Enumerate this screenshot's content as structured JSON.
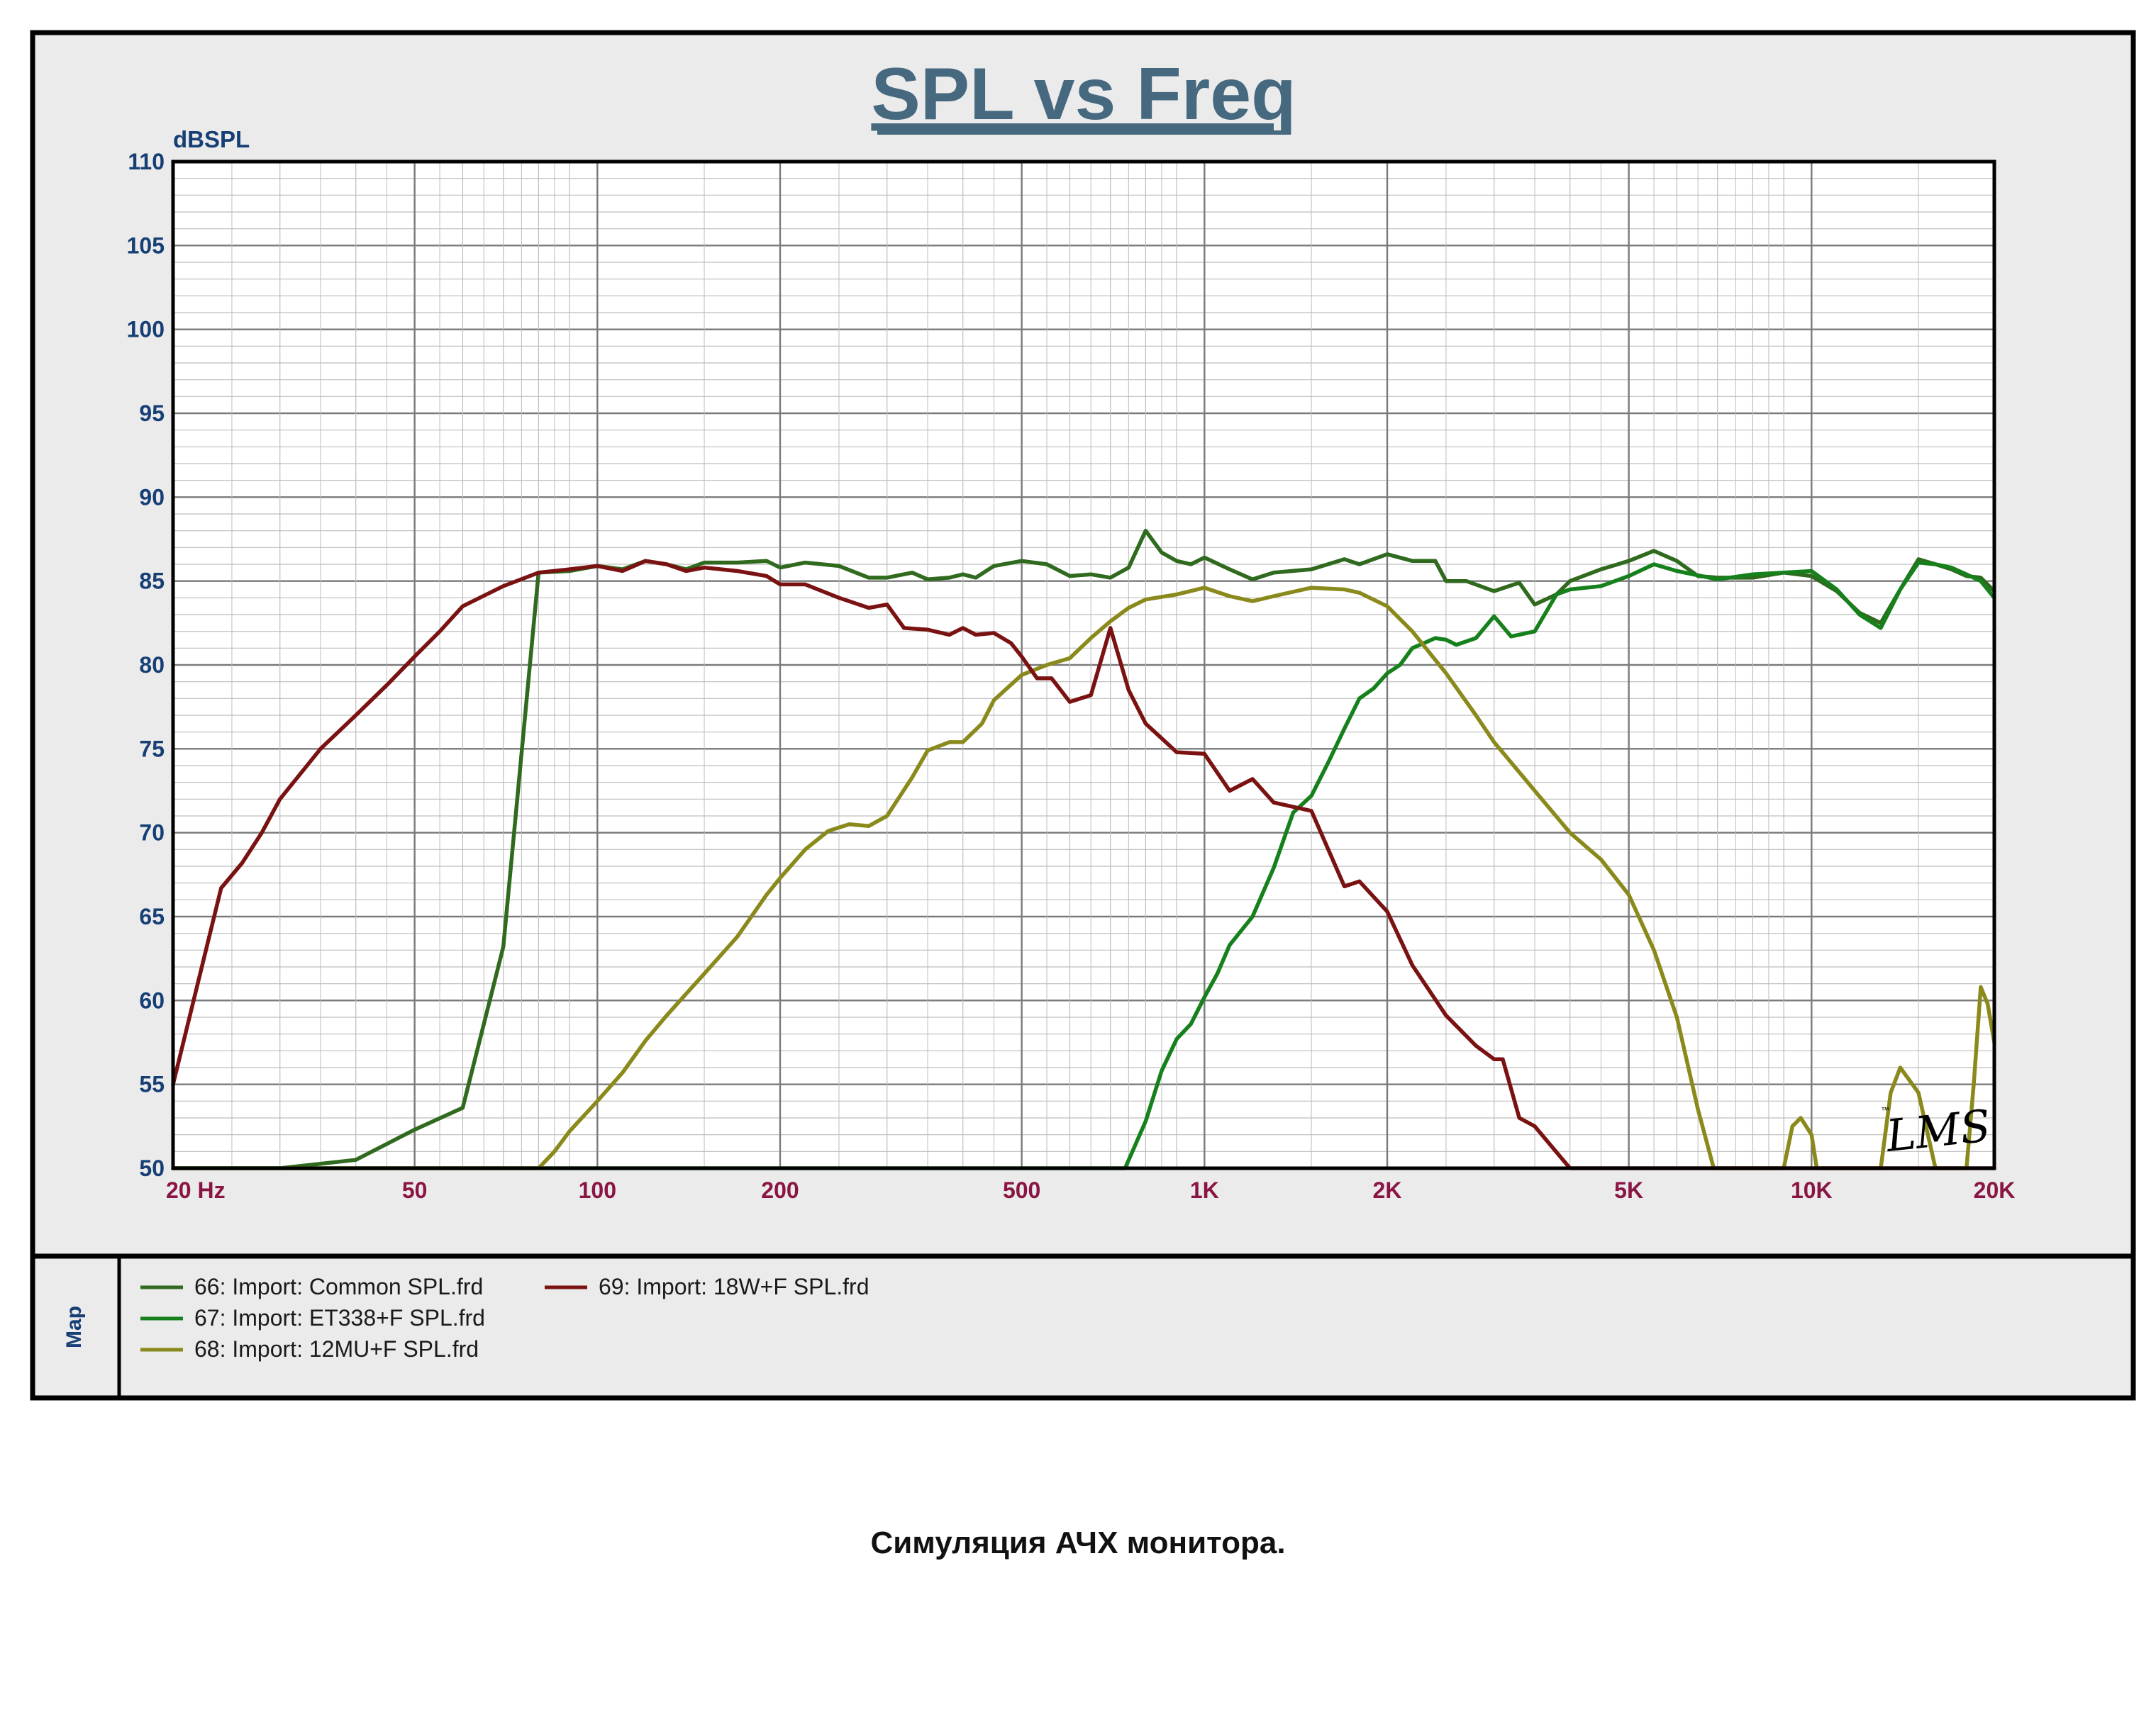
{
  "caption": "Симуляция АЧХ  монитора.",
  "logo_text": "LMS",
  "legend_side_label": "Map",
  "colors": {
    "panel_bg": "#ebebeb",
    "plot_bg": "#ffffff",
    "border": "#000000",
    "grid_major": "#7a7a7a",
    "grid_minor": "#bdbdbd",
    "title": "#46697f",
    "y_tick": "#173f75",
    "x_tick": "#8a1444"
  },
  "chart_data": {
    "type": "line",
    "title": "SPL vs Freq",
    "ylabel": "dBSPL",
    "xlabel": "",
    "x_scale": "log",
    "xlim": [
      20,
      20000
    ],
    "ylim": [
      50,
      110
    ],
    "grid": true,
    "legend_position": "bottom",
    "y_ticks": [
      {
        "value": 110,
        "label": "110"
      },
      {
        "value": 105,
        "label": "105"
      },
      {
        "value": 100,
        "label": "100"
      },
      {
        "value": 95,
        "label": "95"
      },
      {
        "value": 90,
        "label": "90"
      },
      {
        "value": 85,
        "label": "85"
      },
      {
        "value": 80,
        "label": "80"
      },
      {
        "value": 75,
        "label": "75"
      },
      {
        "value": 70,
        "label": "70"
      },
      {
        "value": 65,
        "label": "65"
      },
      {
        "value": 60,
        "label": "60"
      },
      {
        "value": 55,
        "label": "55"
      },
      {
        "value": 50,
        "label": "50"
      }
    ],
    "x_ticks": [
      {
        "value": 20,
        "label": "20  Hz"
      },
      {
        "value": 50,
        "label": "50"
      },
      {
        "value": 100,
        "label": "100"
      },
      {
        "value": 200,
        "label": "200"
      },
      {
        "value": 500,
        "label": "500"
      },
      {
        "value": 1000,
        "label": "1K"
      },
      {
        "value": 2000,
        "label": "2K"
      },
      {
        "value": 5000,
        "label": "5K"
      },
      {
        "value": 10000,
        "label": "10K"
      },
      {
        "value": 20000,
        "label": "20K"
      }
    ],
    "series": [
      {
        "name": "66: Import: Common SPL.frd",
        "color": "#2f6a1e",
        "x": [
          20,
          30,
          40,
          50,
          60,
          70,
          80,
          90,
          100,
          110,
          120,
          130,
          140,
          150,
          170,
          190,
          200,
          220,
          250,
          280,
          300,
          330,
          350,
          380,
          400,
          420,
          450,
          500,
          550,
          600,
          650,
          700,
          750,
          800,
          850,
          900,
          950,
          1000,
          1100,
          1200,
          1300,
          1500,
          1700,
          1800,
          2000,
          2200,
          2400,
          2500,
          2700,
          3000,
          3300,
          3500,
          3800,
          4000,
          4500,
          5000,
          5500,
          6000,
          6500,
          7000,
          8000,
          9000,
          10000,
          11000,
          12000,
          13000,
          14000,
          15000,
          16000,
          17000,
          18000,
          19000,
          20000
        ],
        "y": [
          50.0,
          50.0,
          50.5,
          52.3,
          53.6,
          63.2,
          85.5,
          85.6,
          85.9,
          85.7,
          86.2,
          86.0,
          85.7,
          86.1,
          86.1,
          86.2,
          85.8,
          86.1,
          85.9,
          85.2,
          85.2,
          85.5,
          85.1,
          85.2,
          85.4,
          85.2,
          85.9,
          86.2,
          86.0,
          85.3,
          85.4,
          85.2,
          85.8,
          88.0,
          86.7,
          86.2,
          86.0,
          86.4,
          85.7,
          85.1,
          85.5,
          85.7,
          86.3,
          86.0,
          86.6,
          86.2,
          86.2,
          85.0,
          85.0,
          84.4,
          84.9,
          83.6,
          84.2,
          85.0,
          85.7,
          86.2,
          86.8,
          86.2,
          85.3,
          85.2,
          85.2,
          85.5,
          85.3,
          84.4,
          83.1,
          82.5,
          84.5,
          86.3,
          86.0,
          85.7,
          85.3,
          85.2,
          84.4
        ]
      },
      {
        "name": "67: Import: ET338+F SPL.frd",
        "color": "#16811c",
        "x": [
          20,
          100,
          300,
          600,
          740,
          800,
          850,
          900,
          950,
          1000,
          1050,
          1100,
          1200,
          1300,
          1400,
          1500,
          1600,
          1700,
          1800,
          1900,
          2000,
          2100,
          2200,
          2300,
          2400,
          2500,
          2600,
          2800,
          3000,
          3200,
          3500,
          3800,
          4000,
          4500,
          5000,
          5500,
          6000,
          7000,
          8000,
          9000,
          10000,
          11000,
          12000,
          13000,
          14000,
          15000,
          16000,
          17000,
          18000,
          19000,
          20000
        ],
        "y": [
          50.0,
          50.0,
          50.0,
          50.0,
          50.0,
          52.8,
          55.8,
          57.7,
          58.6,
          60.2,
          61.6,
          63.3,
          65.0,
          67.9,
          71.2,
          72.2,
          74.2,
          76.2,
          78.0,
          78.6,
          79.5,
          80.0,
          81.0,
          81.3,
          81.6,
          81.5,
          81.2,
          81.6,
          82.9,
          81.7,
          82.0,
          84.2,
          84.5,
          84.7,
          85.3,
          86.0,
          85.6,
          85.1,
          85.4,
          85.5,
          85.6,
          84.5,
          83.0,
          82.2,
          84.5,
          86.1,
          86.0,
          85.8,
          85.4,
          85.0,
          84.0
        ]
      },
      {
        "name": "68: Import: 12MU+F SPL.frd",
        "color": "#8a8a1c",
        "x": [
          20,
          80,
          85,
          90,
          100,
          110,
          120,
          130,
          150,
          170,
          190,
          200,
          220,
          240,
          260,
          280,
          300,
          330,
          350,
          380,
          400,
          430,
          450,
          500,
          550,
          600,
          650,
          700,
          750,
          800,
          900,
          1000,
          1100,
          1200,
          1300,
          1500,
          1700,
          1800,
          2000,
          2200,
          2500,
          2800,
          3000,
          3500,
          4000,
          4500,
          5000,
          5500,
          6000,
          6500,
          6900,
          7000,
          9000,
          9300,
          9600,
          10000,
          10200,
          13000,
          13500,
          14000,
          15000,
          16000,
          16500,
          17000,
          17500,
          18000,
          18500,
          19000,
          19500,
          20000
        ],
        "y": [
          50.0,
          50.0,
          51.0,
          52.2,
          54.0,
          55.7,
          57.6,
          59.1,
          61.6,
          63.8,
          66.3,
          67.3,
          69.0,
          70.1,
          70.5,
          70.4,
          71.0,
          73.3,
          74.9,
          75.4,
          75.4,
          76.5,
          77.9,
          79.4,
          80.0,
          80.4,
          81.6,
          82.6,
          83.4,
          83.9,
          84.2,
          84.6,
          84.1,
          83.8,
          84.1,
          84.6,
          84.5,
          84.3,
          83.5,
          82.0,
          79.5,
          77.0,
          75.4,
          72.5,
          70.0,
          68.4,
          66.3,
          63.0,
          59.0,
          53.5,
          50.0,
          50.0,
          50.0,
          52.5,
          53.0,
          52.0,
          50.0,
          50.0,
          54.5,
          56.0,
          54.5,
          50.0,
          50.0,
          50.0,
          50.0,
          50.0,
          55.0,
          60.8,
          59.8,
          57.5
        ]
      },
      {
        "name": "69: Import: 18W+F SPL.frd",
        "color": "#7a1212",
        "x": [
          20,
          24,
          26,
          28,
          30,
          35,
          40,
          45,
          50,
          55,
          60,
          70,
          80,
          90,
          100,
          110,
          120,
          130,
          140,
          150,
          170,
          190,
          200,
          220,
          250,
          280,
          300,
          320,
          350,
          380,
          400,
          420,
          450,
          480,
          500,
          530,
          560,
          600,
          650,
          700,
          750,
          800,
          900,
          1000,
          1100,
          1200,
          1300,
          1500,
          1700,
          1800,
          2000,
          2200,
          2500,
          2800,
          3000,
          3100,
          3300,
          3500,
          4000,
          5000,
          10000,
          20000
        ],
        "y": [
          55.0,
          66.7,
          68.2,
          70.0,
          72.0,
          75.0,
          77.0,
          78.8,
          80.5,
          82.0,
          83.5,
          84.7,
          85.5,
          85.7,
          85.9,
          85.6,
          86.2,
          86.0,
          85.6,
          85.8,
          85.6,
          85.3,
          84.8,
          84.8,
          84.0,
          83.4,
          83.6,
          82.2,
          82.1,
          81.8,
          82.2,
          81.8,
          81.9,
          81.3,
          80.5,
          79.2,
          79.2,
          77.8,
          78.2,
          82.2,
          78.5,
          76.5,
          74.8,
          74.7,
          72.5,
          73.2,
          71.8,
          71.3,
          66.8,
          67.1,
          65.3,
          62.1,
          59.1,
          57.3,
          56.5,
          56.5,
          53.0,
          52.5,
          50.0,
          50.0,
          50.0,
          50.0
        ]
      }
    ]
  }
}
